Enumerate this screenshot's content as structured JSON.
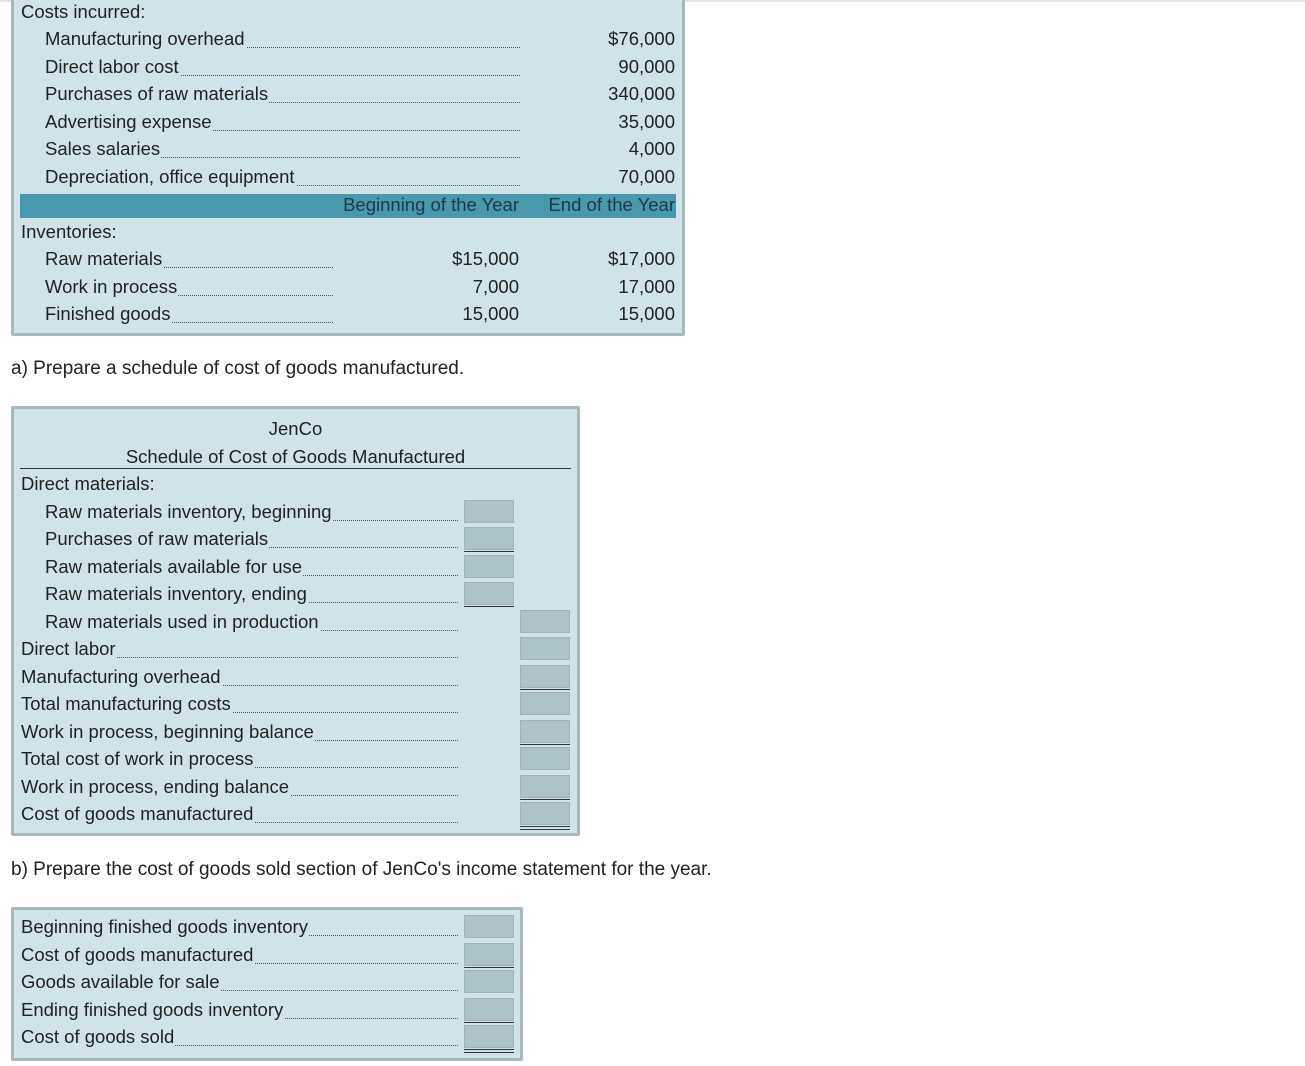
{
  "given": {
    "costs_header": "Costs incurred:",
    "costs": [
      {
        "label": "Manufacturing overhead",
        "value": "$76,000"
      },
      {
        "label": "Direct labor cost",
        "value": "90,000"
      },
      {
        "label": "Purchases of raw materials",
        "value": "340,000"
      },
      {
        "label": "Advertising expense",
        "value": "35,000"
      },
      {
        "label": "Sales salaries",
        "value": "4,000"
      },
      {
        "label": "Depreciation, office equipment",
        "value": "70,000"
      }
    ],
    "col_begin": "Beginning of the Year",
    "col_end": "End of the Year",
    "inventories_header": "Inventories:",
    "inventories": [
      {
        "label": "Raw materials",
        "begin": "$15,000",
        "end": "$17,000"
      },
      {
        "label": "Work in process",
        "begin": "7,000",
        "end": "17,000"
      },
      {
        "label": "Finished goods",
        "begin": "15,000",
        "end": "15,000"
      }
    ]
  },
  "part_a": {
    "question": "a) Prepare a schedule of cost of goods manufactured.",
    "company": "JenCo",
    "title": "Schedule of Cost of Goods Manufactured",
    "dm_header": "Direct materials:",
    "dm_rows": [
      "Raw materials inventory, beginning",
      "Purchases of raw materials",
      "Raw materials available for use",
      "Raw materials inventory, ending",
      "Raw materials used in production"
    ],
    "rows": [
      "Direct labor",
      "Manufacturing overhead",
      "Total manufacturing costs",
      "Work in process, beginning balance",
      "Total cost of work in process",
      "Work in process, ending balance",
      "Cost of goods manufactured"
    ]
  },
  "part_b": {
    "question": "b) Prepare the cost of goods sold section of JenCo's income statement for the year.",
    "rows": [
      "Beginning finished goods inventory",
      "Cost of goods manufactured",
      "Goods available for sale",
      "Ending finished goods inventory",
      "Cost of goods sold"
    ]
  },
  "colors": {
    "panel": "#cfe3e8",
    "header_bar": "#4a98ad",
    "input": "#aec3c8"
  }
}
